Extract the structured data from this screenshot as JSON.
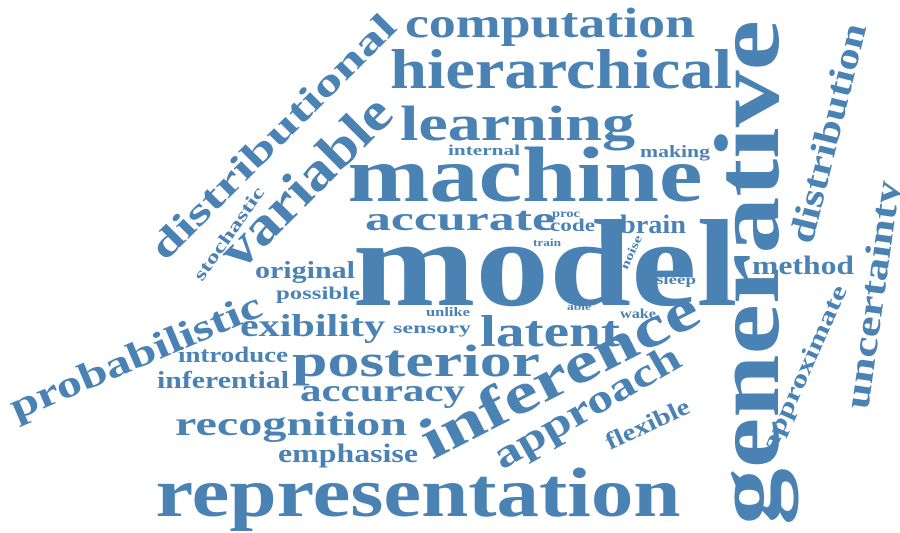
{
  "word_color": "#4a82b4",
  "background_color": "#ffffff",
  "words": [
    "model",
    "generative",
    "representation",
    "machine",
    "inference",
    "hierarchical",
    "variable",
    "learning",
    "posterior",
    "distributional",
    "computation",
    "probabilistic",
    "approach",
    "latent",
    "distribution",
    "uncertainty",
    "accurate",
    "recognition",
    "exibility",
    "accuracy",
    "method",
    "approximate",
    "original",
    "emphasise",
    "inferential",
    "introduce",
    "stochastic",
    "flexible",
    "brain",
    "possible",
    "sensory",
    "internal",
    "making",
    "code",
    "sleep",
    "wake",
    "unlike",
    "noise",
    "proc",
    "train",
    "able"
  ]
}
